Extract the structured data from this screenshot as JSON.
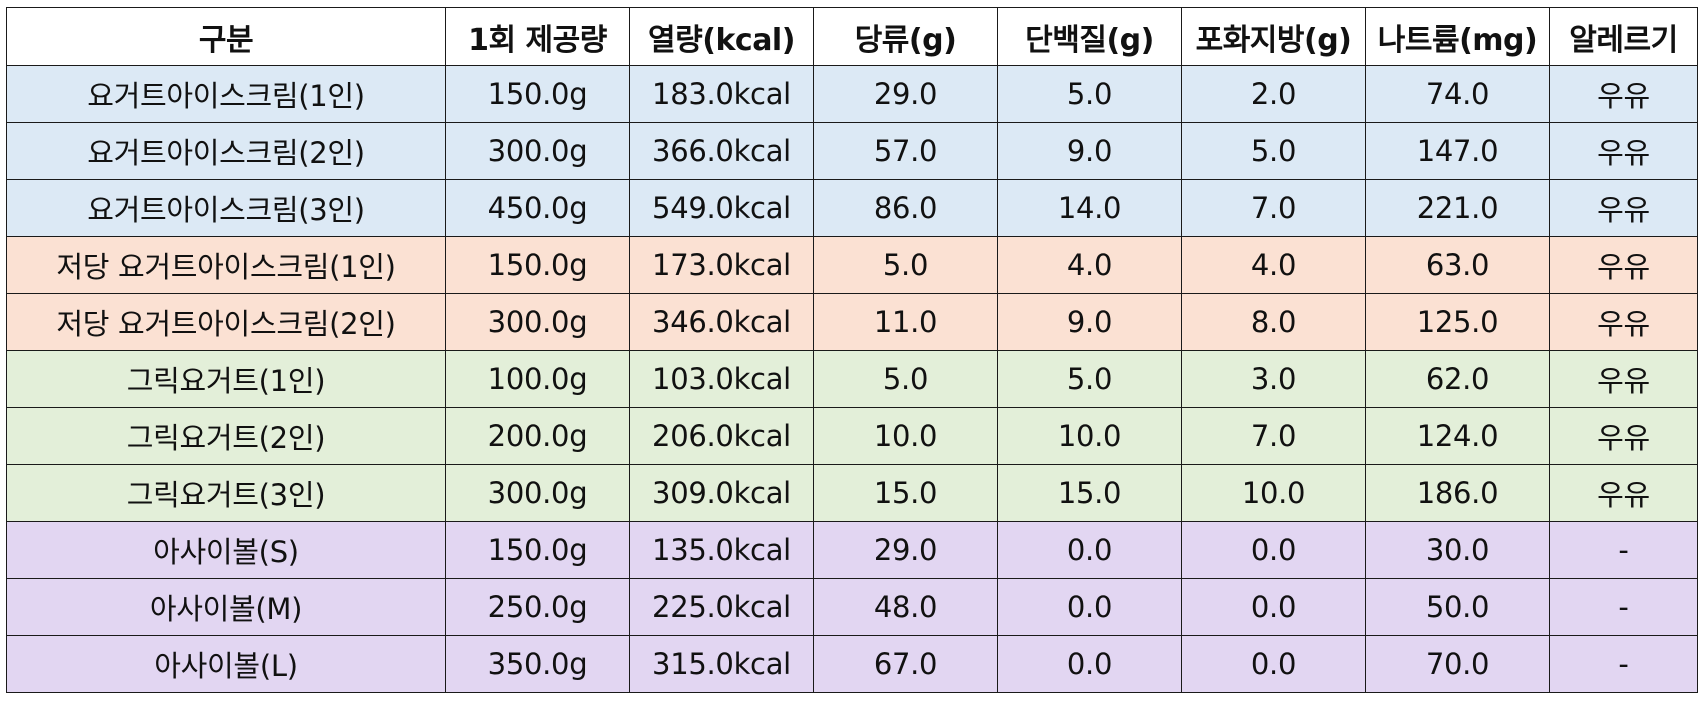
{
  "table": {
    "headers": [
      "구분",
      "1회 제공량",
      "열량(kcal)",
      "당류(g)",
      "단백질(g)",
      "포화지방(g)",
      "나트륨(mg)",
      "알레르기"
    ],
    "colors": {
      "blue": "#dce9f5",
      "orange": "#fbe1d3",
      "green": "#e3efd9",
      "purple": "#e2d6f2"
    },
    "rows": [
      {
        "group": "blue",
        "cells": [
          "요거트아이스크림(1인)",
          "150.0g",
          "183.0kcal",
          "29.0",
          "5.0",
          "2.0",
          "74.0",
          "우유"
        ]
      },
      {
        "group": "blue",
        "cells": [
          "요거트아이스크림(2인)",
          "300.0g",
          "366.0kcal",
          "57.0",
          "9.0",
          "5.0",
          "147.0",
          "우유"
        ]
      },
      {
        "group": "blue",
        "cells": [
          "요거트아이스크림(3인)",
          "450.0g",
          "549.0kcal",
          "86.0",
          "14.0",
          "7.0",
          "221.0",
          "우유"
        ]
      },
      {
        "group": "orange",
        "cells": [
          "저당 요거트아이스크림(1인)",
          "150.0g",
          "173.0kcal",
          "5.0",
          "4.0",
          "4.0",
          "63.0",
          "우유"
        ]
      },
      {
        "group": "orange",
        "cells": [
          "저당 요거트아이스크림(2인)",
          "300.0g",
          "346.0kcal",
          "11.0",
          "9.0",
          "8.0",
          "125.0",
          "우유"
        ]
      },
      {
        "group": "green",
        "cells": [
          "그릭요거트(1인)",
          "100.0g",
          "103.0kcal",
          "5.0",
          "5.0",
          "3.0",
          "62.0",
          "우유"
        ]
      },
      {
        "group": "green",
        "cells": [
          "그릭요거트(2인)",
          "200.0g",
          "206.0kcal",
          "10.0",
          "10.0",
          "7.0",
          "124.0",
          "우유"
        ]
      },
      {
        "group": "green",
        "cells": [
          "그릭요거트(3인)",
          "300.0g",
          "309.0kcal",
          "15.0",
          "15.0",
          "10.0",
          "186.0",
          "우유"
        ]
      },
      {
        "group": "purple",
        "cells": [
          "아사이볼(S)",
          "150.0g",
          "135.0kcal",
          "29.0",
          "0.0",
          "0.0",
          "30.0",
          "-"
        ]
      },
      {
        "group": "purple",
        "cells": [
          "아사이볼(M)",
          "250.0g",
          "225.0kcal",
          "48.0",
          "0.0",
          "0.0",
          "50.0",
          "-"
        ]
      },
      {
        "group": "purple",
        "cells": [
          "아사이볼(L)",
          "350.0g",
          "315.0kcal",
          "67.0",
          "0.0",
          "0.0",
          "70.0",
          "-"
        ]
      }
    ]
  }
}
